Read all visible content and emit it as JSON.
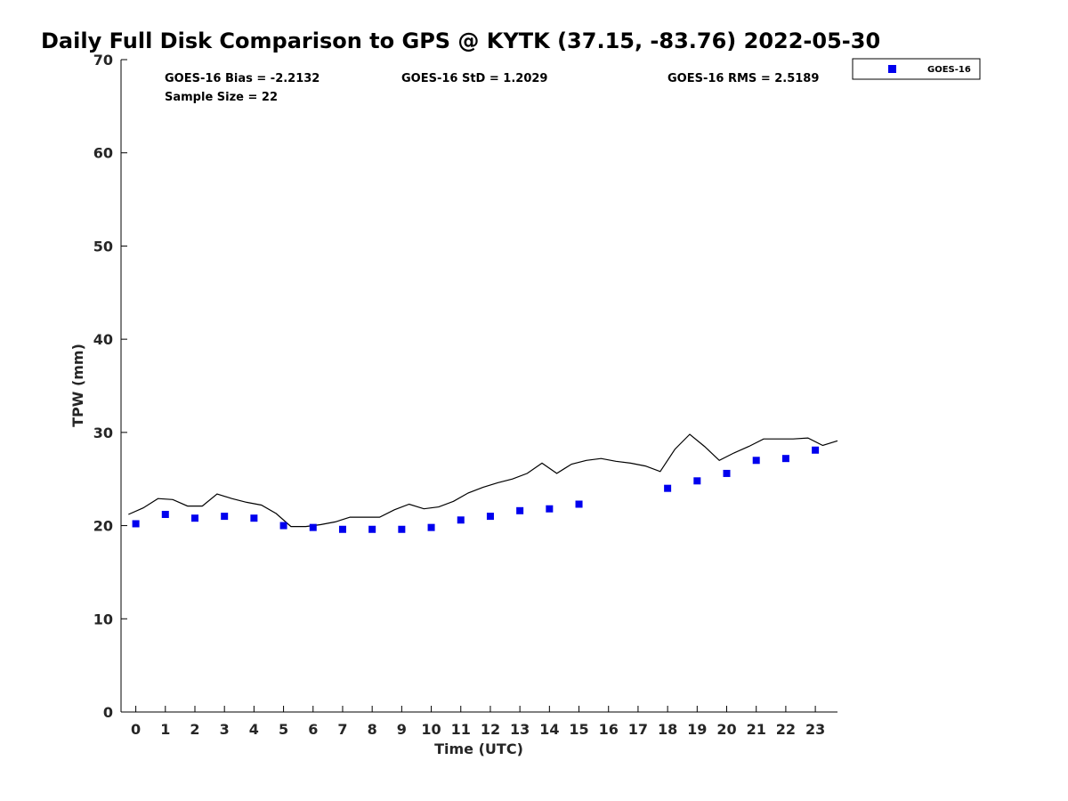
{
  "chart_data": {
    "type": "scatter",
    "title": "Daily Full Disk Comparison to GPS @ KYTK (37.15, -83.76) 2022-05-30",
    "xlabel": "Time (UTC)",
    "ylabel": "TPW (mm)",
    "xlim": [
      -0.5,
      23.75
    ],
    "ylim": [
      0,
      70
    ],
    "x_ticks": [
      0,
      1,
      2,
      3,
      4,
      5,
      6,
      7,
      8,
      9,
      10,
      11,
      12,
      13,
      14,
      15,
      16,
      17,
      18,
      19,
      20,
      21,
      22,
      23
    ],
    "y_ticks": [
      0,
      10,
      20,
      30,
      40,
      50,
      60,
      70
    ],
    "grid": false,
    "legend_position": "top-right, outside plot",
    "stats": {
      "bias": "GOES-16 Bias = -2.2132",
      "std": "GOES-16 StD = 1.2029",
      "rms": "GOES-16 RMS = 2.5189",
      "sample": "Sample Size = 22"
    },
    "series": [
      {
        "name": "GOES-16",
        "style": "square-markers",
        "color": "#0000ee",
        "x": [
          0,
          1,
          2,
          3,
          4,
          5,
          6,
          7,
          8,
          9,
          10,
          11,
          12,
          13,
          14,
          15,
          18,
          19,
          20,
          21,
          22,
          23
        ],
        "y": [
          20.2,
          21.2,
          20.8,
          21.0,
          20.8,
          20.0,
          19.8,
          19.6,
          19.6,
          19.6,
          19.8,
          20.6,
          21.0,
          21.6,
          21.8,
          22.3,
          24.0,
          24.8,
          25.6,
          27.0,
          27.2,
          28.1
        ]
      },
      {
        "style": "line",
        "color": "#000000",
        "x": [
          -0.25,
          0.25,
          0.75,
          1.25,
          1.75,
          2.25,
          2.75,
          3.25,
          3.75,
          4.25,
          4.75,
          5.25,
          5.75,
          6.25,
          6.75,
          7.25,
          7.75,
          8.25,
          8.75,
          9.25,
          9.75,
          10.25,
          10.75,
          11.25,
          11.75,
          12.25,
          12.75,
          13.25,
          13.75,
          14.25,
          14.75,
          15.25,
          15.75,
          16.25,
          16.75,
          17.25,
          17.75,
          18.25,
          18.75,
          19.25,
          19.75,
          20.25,
          20.75,
          21.25,
          21.75,
          22.25,
          22.75,
          23.25,
          23.75
        ],
        "y": [
          21.2,
          21.9,
          22.9,
          22.8,
          22.1,
          22.1,
          23.4,
          22.9,
          22.5,
          22.2,
          21.3,
          19.9,
          19.9,
          20.1,
          20.4,
          20.9,
          20.9,
          20.9,
          21.7,
          22.3,
          21.8,
          22.0,
          22.6,
          23.5,
          24.1,
          24.6,
          25.0,
          25.6,
          26.7,
          25.6,
          26.6,
          27.0,
          27.2,
          26.9,
          26.7,
          26.4,
          25.8,
          28.2,
          29.8,
          28.5,
          27.0,
          27.8,
          28.5,
          29.3,
          29.3,
          29.3,
          29.4,
          28.6,
          29.1
        ]
      }
    ]
  }
}
